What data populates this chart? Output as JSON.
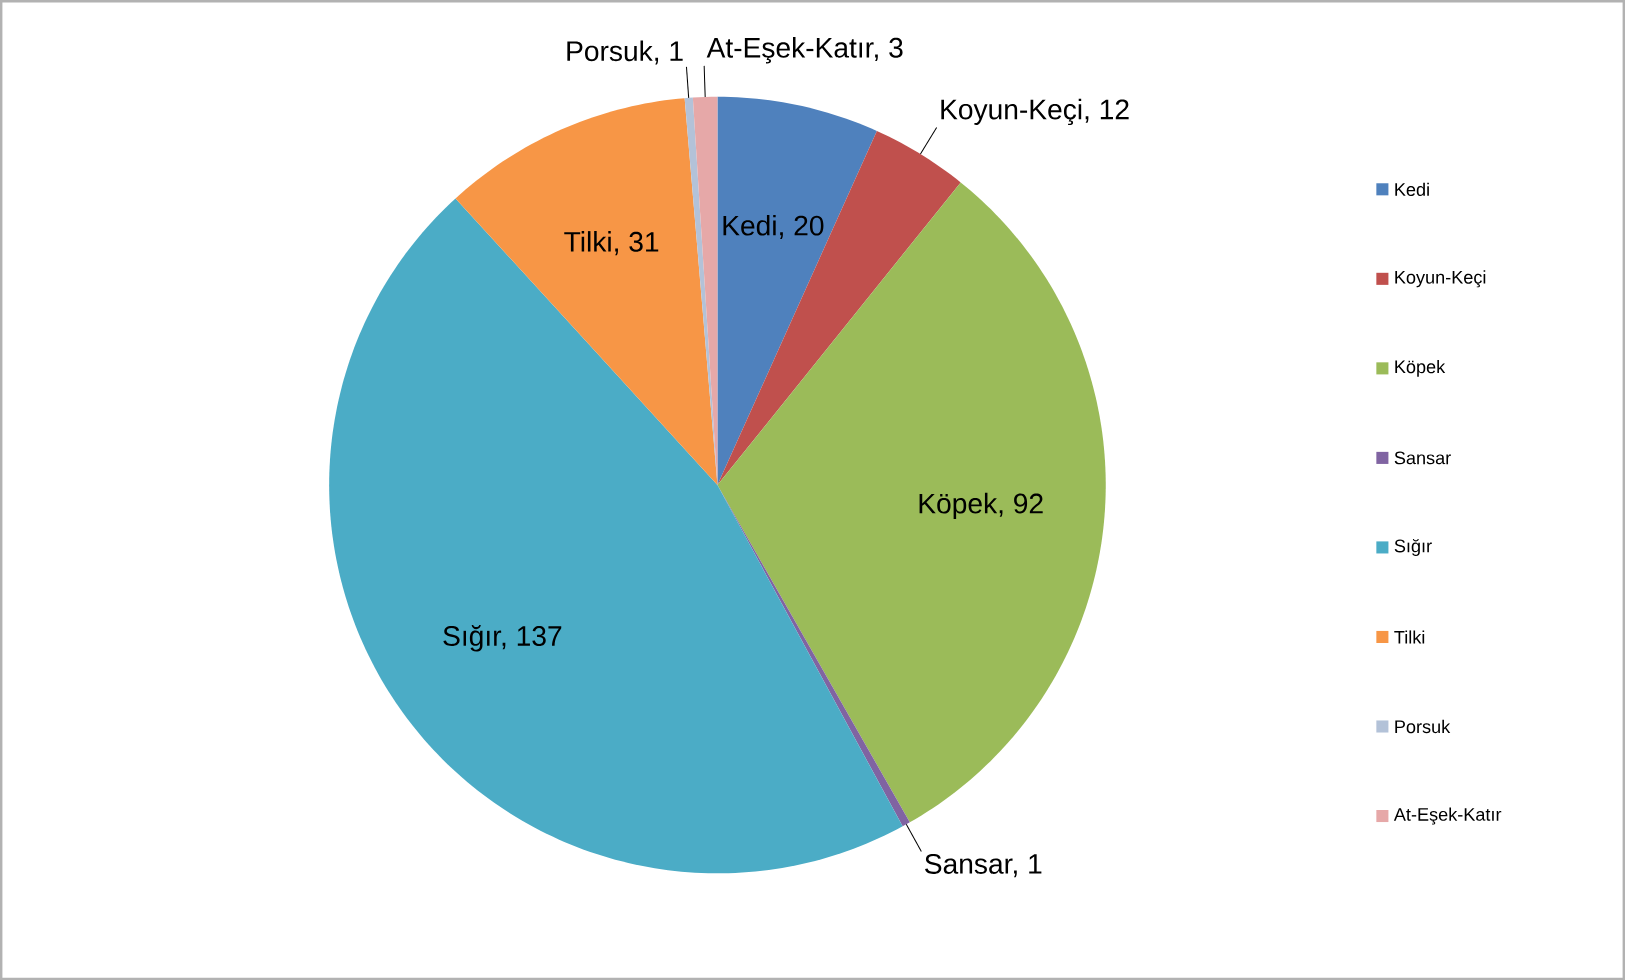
{
  "chart_data": {
    "type": "pie",
    "categories": [
      "Kedi",
      "Koyun-Keçi",
      "Köpek",
      "Sansar",
      "Sığır",
      "Tilki",
      "Porsuk",
      "At-Eşek-Katır"
    ],
    "values": [
      20,
      12,
      92,
      1,
      137,
      31,
      1,
      3
    ],
    "colors": [
      "#4f81bd",
      "#c0504d",
      "#9bbb59",
      "#8064a2",
      "#4bacc6",
      "#f79646",
      "#b3c2d8",
      "#e6a8a8"
    ],
    "value_labels": [
      "Kedi, 20",
      "Koyun-Keçi, 12",
      "Köpek, 92",
      "Sansar, 1",
      "Sığır, 137",
      "Tilki, 31",
      "Porsuk, 1",
      "At-Eşek-Katır, 3"
    ],
    "legend": "right"
  }
}
